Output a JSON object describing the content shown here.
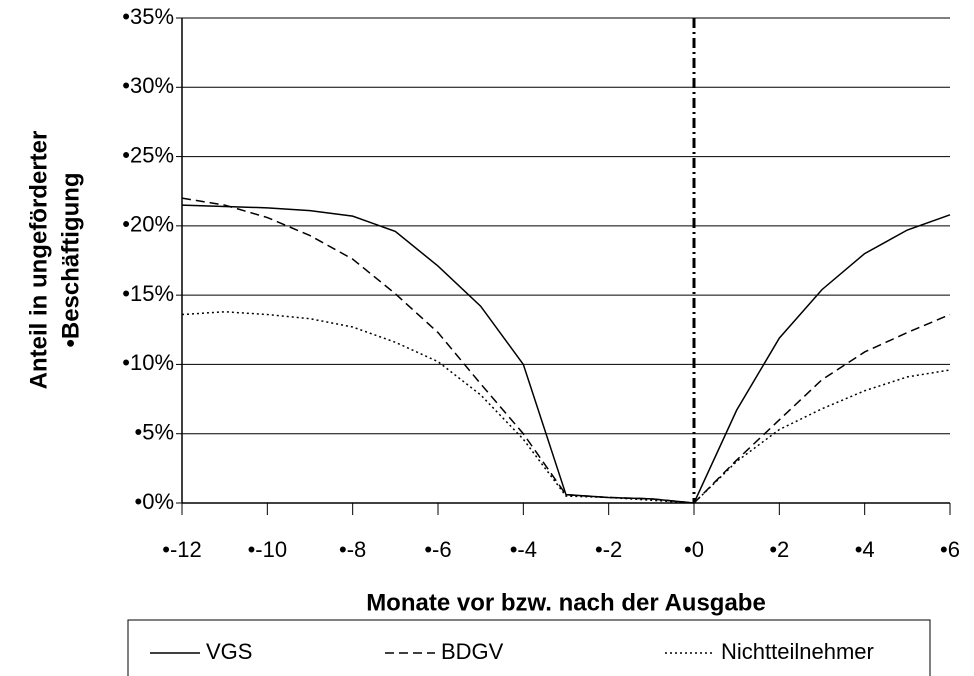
{
  "chart_data": {
    "type": "line",
    "ylabel": [
      "Anteil in ungeförderter",
      "•Beschäftigung"
    ],
    "xlabel": "Monate vor bzw. nach der Ausgabe",
    "x": [
      -12,
      -11,
      -10,
      -9,
      -8,
      -7,
      -6,
      -5,
      -4,
      -3,
      -2,
      -1,
      0,
      1,
      2,
      3,
      4,
      5,
      6
    ],
    "series": [
      {
        "name": "VGS",
        "color": "#000000",
        "style": "solid",
        "values": [
          21.5,
          21.4,
          21.3,
          21.1,
          20.7,
          19.6,
          17.1,
          14.2,
          10.0,
          0.6,
          0.4,
          0.3,
          0,
          6.7,
          11.9,
          15.4,
          18.0,
          19.7,
          20.8
        ]
      },
      {
        "name": "BDGV",
        "color": "#000000",
        "style": "dashed",
        "values": [
          22.0,
          21.5,
          20.6,
          19.3,
          17.6,
          15.1,
          12.3,
          8.6,
          5.0,
          0.6,
          0.4,
          0.3,
          0,
          3.1,
          6.0,
          8.9,
          10.9,
          12.3,
          13.6
        ]
      },
      {
        "name": "Nichtteilnehmer",
        "color": "#000000",
        "style": "dotted",
        "values": [
          13.6,
          13.8,
          13.6,
          13.3,
          12.7,
          11.6,
          10.2,
          7.8,
          4.6,
          0.5,
          0.4,
          0.2,
          0,
          3.0,
          5.3,
          6.8,
          8.1,
          9.1,
          9.6
        ]
      }
    ],
    "xlim": [
      -12,
      6
    ],
    "xticks": [
      {
        "value": -12,
        "label": "•-12"
      },
      {
        "value": -10,
        "label": "•-10"
      },
      {
        "value": -8,
        "label": "•-8"
      },
      {
        "value": -6,
        "label": "•-6"
      },
      {
        "value": -4,
        "label": "•-4"
      },
      {
        "value": -2,
        "label": "•-2"
      },
      {
        "value": 0,
        "label": "•0"
      },
      {
        "value": 2,
        "label": "•2"
      },
      {
        "value": 4,
        "label": "•4"
      },
      {
        "value": 6,
        "label": "•6"
      }
    ],
    "ylim": [
      0,
      35
    ],
    "yticks": [
      {
        "value": 0,
        "label": "•0%"
      },
      {
        "value": 5,
        "label": "•5%"
      },
      {
        "value": 10,
        "label": "•10%"
      },
      {
        "value": 15,
        "label": "•15%"
      },
      {
        "value": 20,
        "label": "•20%"
      },
      {
        "value": 25,
        "label": "•25%"
      },
      {
        "value": 30,
        "label": "•30%"
      },
      {
        "value": 35,
        "label": "•35%"
      }
    ],
    "grid": true,
    "reference_line_x": 0,
    "legend": "bottom"
  }
}
